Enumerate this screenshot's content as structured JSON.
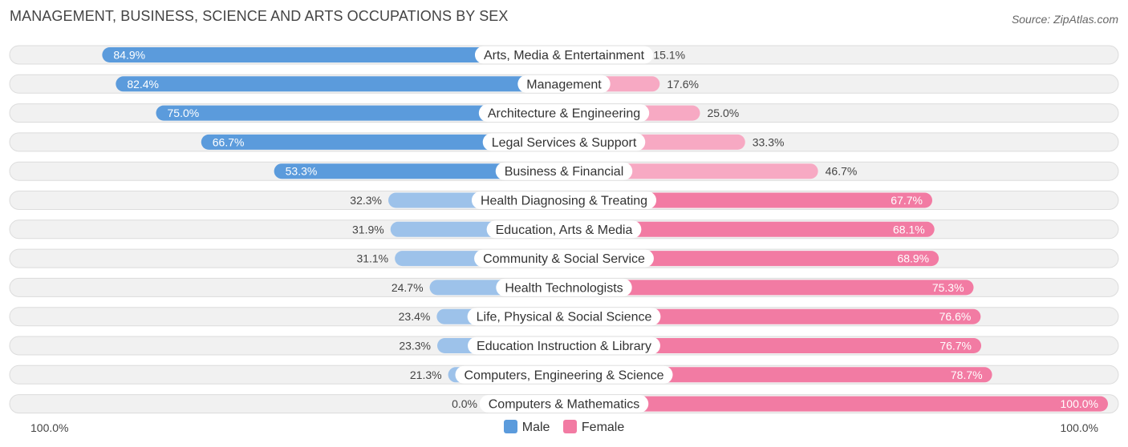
{
  "title": "MANAGEMENT, BUSINESS, SCIENCE AND ARTS OCCUPATIONS BY SEX",
  "source": "Source: ZipAtlas.com",
  "colors": {
    "male_strong": "#5b9bdc",
    "male_light": "#9dc2ea",
    "female_strong": "#f27ba3",
    "female_light": "#f7a9c3",
    "row_bg": "#f1f1f1",
    "row_border": "#dcdcdc"
  },
  "chart_data": {
    "type": "bar",
    "orientation": "horizontal-diverging",
    "title": "MANAGEMENT, BUSINESS, SCIENCE AND ARTS OCCUPATIONS BY SEX",
    "categories": [
      "Arts, Media & Entertainment",
      "Management",
      "Architecture & Engineering",
      "Legal Services & Support",
      "Business & Financial",
      "Health Diagnosing & Treating",
      "Education, Arts & Media",
      "Community & Social Service",
      "Health Technologists",
      "Life, Physical & Social Science",
      "Education Instruction & Library",
      "Computers, Engineering & Science",
      "Computers & Mathematics"
    ],
    "series": [
      {
        "name": "Male",
        "values": [
          84.9,
          82.4,
          75.0,
          66.7,
          53.3,
          32.3,
          31.9,
          31.1,
          24.7,
          23.4,
          23.3,
          21.3,
          0.0
        ]
      },
      {
        "name": "Female",
        "values": [
          15.1,
          17.6,
          25.0,
          33.3,
          46.7,
          67.7,
          68.1,
          68.9,
          75.3,
          76.6,
          76.7,
          78.7,
          100.0
        ]
      }
    ],
    "xlim": [
      -100,
      100
    ],
    "axis_left_label": "100.0%",
    "axis_right_label": "100.0%",
    "legend": [
      "Male",
      "Female"
    ],
    "legend_position": "bottom-center"
  },
  "legend": {
    "male": "Male",
    "female": "Female"
  }
}
